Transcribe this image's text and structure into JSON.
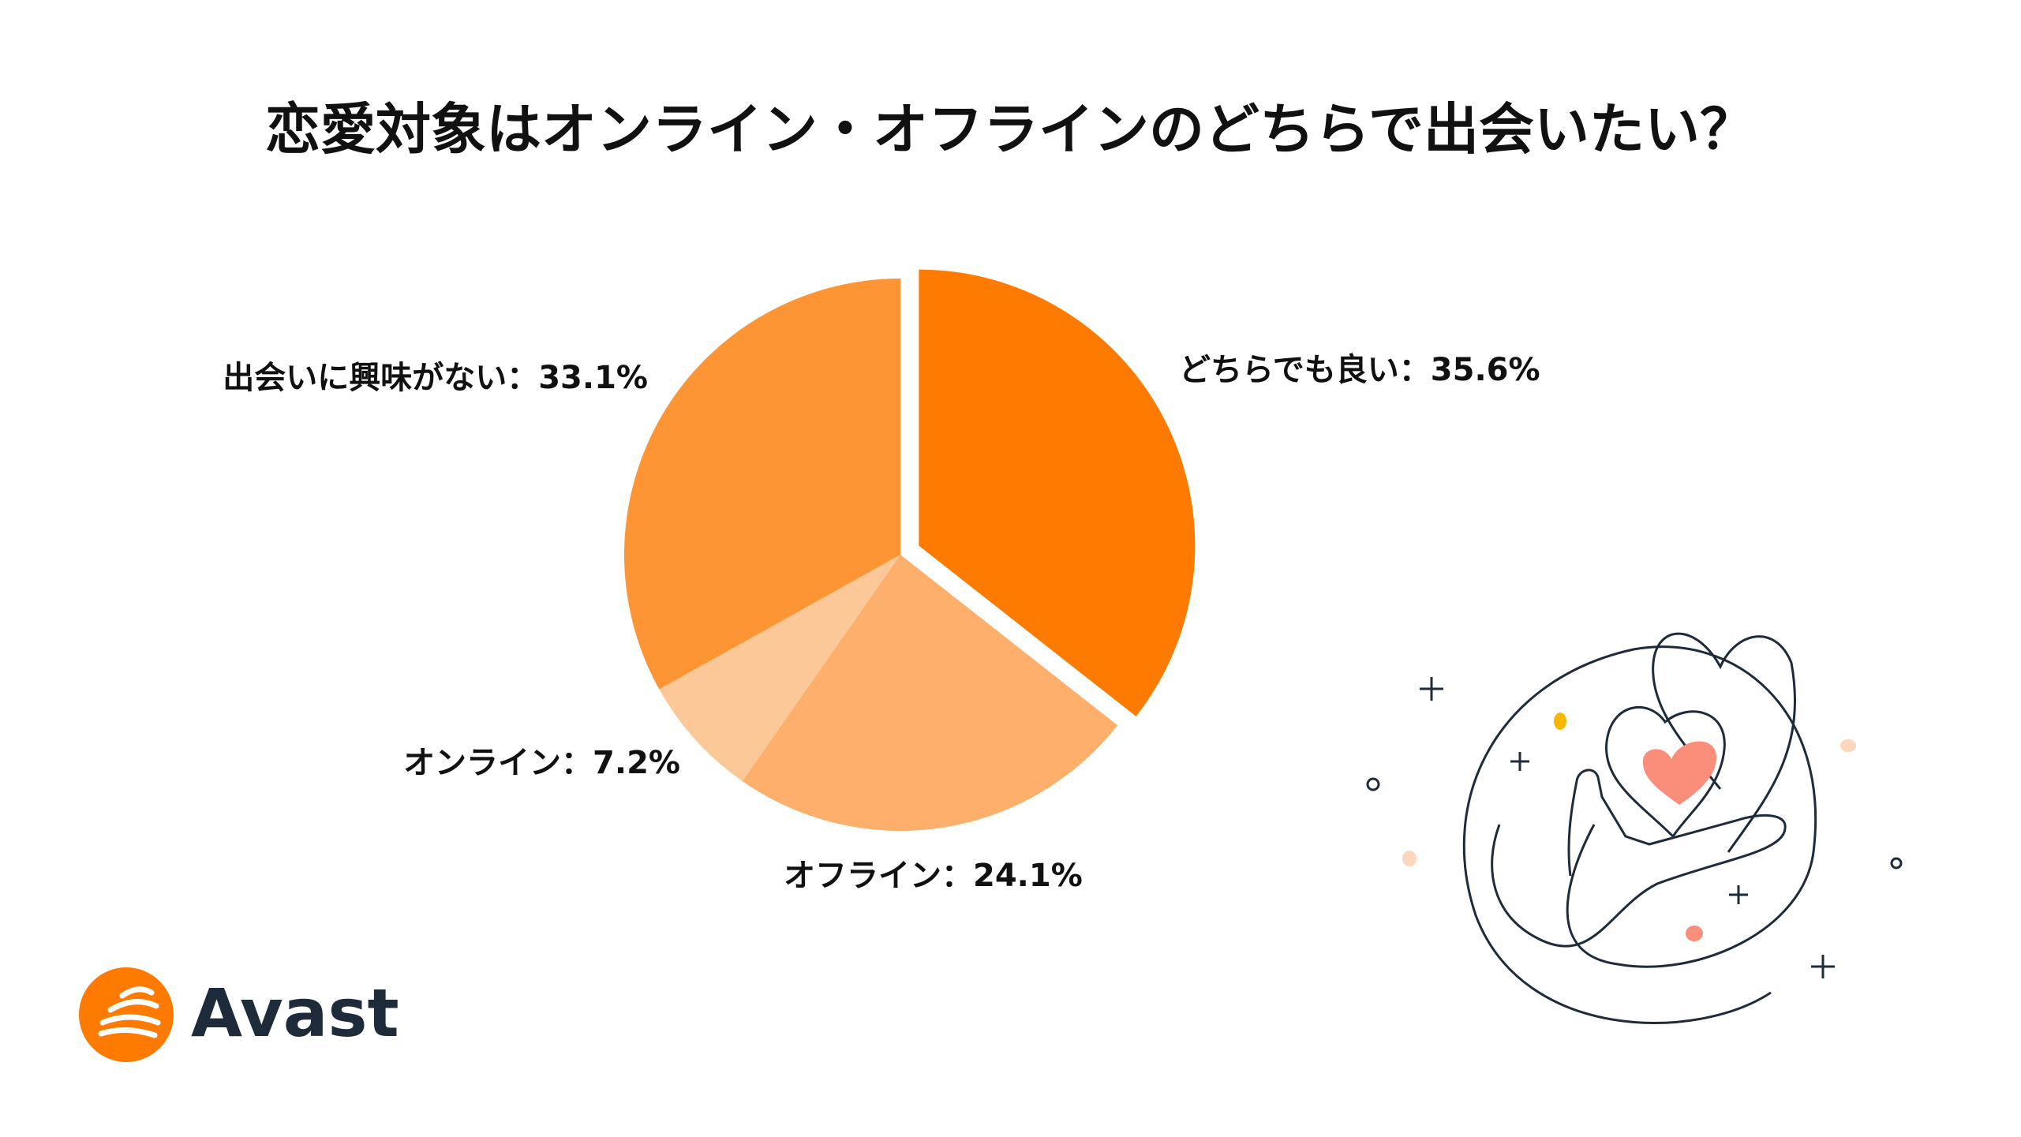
{
  "chart_data": {
    "type": "pie",
    "title": "恋愛対象はオンライン・オフラインのどちらで出会いたい？",
    "values": [
      35.6,
      24.1,
      7.2,
      33.1
    ],
    "value_labels": [
      "どちらでも良い：35.6%",
      "オフライン：24.1%",
      "オンライン：7.2%",
      "出会いに興味がない：33.1%"
    ],
    "colors": [
      "#ff7a00",
      "#fdaf6b",
      "#fdc898",
      "#fe9535"
    ],
    "explode": [
      true,
      false,
      false,
      false
    ]
  },
  "logo": {
    "text": "Avast"
  }
}
